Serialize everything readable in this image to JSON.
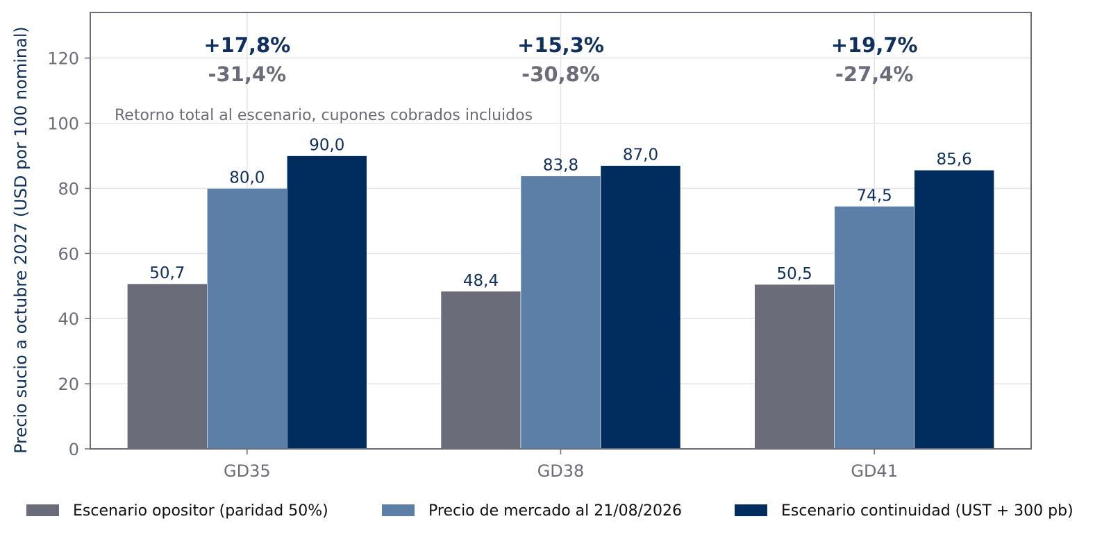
{
  "chart_data": {
    "type": "bar",
    "ylabel": "Precio sucio a octubre 2027 (USD por 100 nominal)",
    "xlabel": "",
    "ylim": [
      0,
      134
    ],
    "yticks": [
      0,
      20,
      40,
      60,
      80,
      100,
      120
    ],
    "grid": true,
    "categories": [
      "GD35",
      "GD38",
      "GD41"
    ],
    "series": [
      {
        "name": "Escenario opositor (paridad 50%)",
        "color": "#6b6c7a",
        "values": [
          50.7,
          48.4,
          50.5
        ],
        "labels": [
          "50,7",
          "48,4",
          "50,5"
        ]
      },
      {
        "name": "Precio de mercado al 21/08/2026",
        "color": "#5b7fa6",
        "values": [
          80.0,
          83.8,
          74.5
        ],
        "labels": [
          "80,0",
          "83,8",
          "74,5"
        ]
      },
      {
        "name": "Escenario continuidad (UST + 300 pb)",
        "color": "#002d5e",
        "values": [
          90.0,
          87.0,
          85.6
        ],
        "labels": [
          "90,0",
          "87,0",
          "85,6"
        ]
      }
    ],
    "upside": [
      "+17,8%",
      "+15,3%",
      "+19,7%"
    ],
    "downside": [
      "-31,4%",
      "-30,8%",
      "-27,4%"
    ],
    "annotation": "Retorno total al escenario, cupones cobrados incluidos",
    "legend_position": "bottom"
  }
}
